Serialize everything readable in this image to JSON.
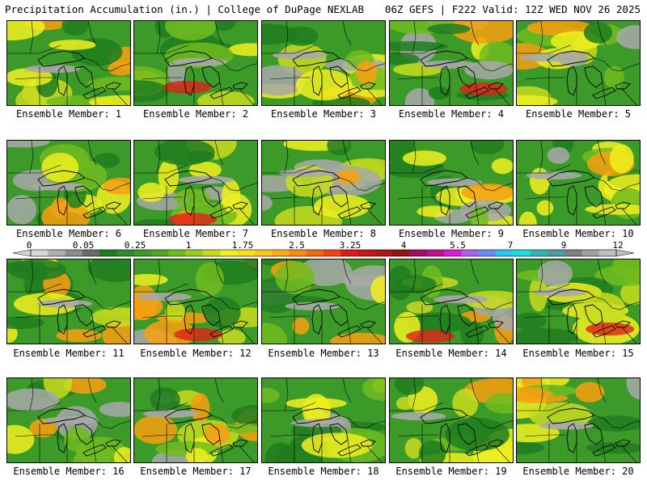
{
  "header": {
    "title": "Precipitation Accumulation (in.) | College of DuPage NEXLAB",
    "valid": "06Z GEFS | F222 Valid: 12Z WED NOV 26 2025"
  },
  "legend": {
    "ticks": [
      "0",
      "0.05",
      "0.25",
      "1",
      "1.75",
      "2.5",
      "3.25",
      "4",
      "5.5",
      "7",
      "9",
      "12"
    ],
    "colors": [
      "#d8d8d8",
      "#b0b0b0",
      "#8c8c8c",
      "#6a6a6a",
      "#1e7d1e",
      "#2e8b2e",
      "#3c9a28",
      "#4ea820",
      "#70bc1e",
      "#9ccc1e",
      "#c8dc1e",
      "#f0f01e",
      "#f8e018",
      "#fcc814",
      "#fcac10",
      "#f88c10",
      "#f46a10",
      "#f04414",
      "#e01818",
      "#c81818",
      "#b01418",
      "#981018",
      "#a01060",
      "#c0108c",
      "#e018d8",
      "#b060f0",
      "#6c8cf8",
      "#28c8f0",
      "#18e0e0",
      "#30b8b8",
      "#509c9c",
      "#808080",
      "#a0a0a0",
      "#c0c0c0"
    ]
  },
  "panels": [
    {
      "label": "Ensemble Member: 1"
    },
    {
      "label": "Ensemble Member: 2"
    },
    {
      "label": "Ensemble Member: 3"
    },
    {
      "label": "Ensemble Member: 4"
    },
    {
      "label": "Ensemble Member: 5"
    },
    {
      "label": "Ensemble Member: 6"
    },
    {
      "label": "Ensemble Member: 7"
    },
    {
      "label": "Ensemble Member: 8"
    },
    {
      "label": "Ensemble Member: 9"
    },
    {
      "label": "Ensemble Member: 10"
    },
    {
      "label": "Ensemble Member: 11"
    },
    {
      "label": "Ensemble Member: 12"
    },
    {
      "label": "Ensemble Member: 13"
    },
    {
      "label": "Ensemble Member: 14"
    },
    {
      "label": "Ensemble Member: 15"
    },
    {
      "label": "Ensemble Member: 16"
    },
    {
      "label": "Ensemble Member: 17"
    },
    {
      "label": "Ensemble Member: 18"
    },
    {
      "label": "Ensemble Member: 19"
    },
    {
      "label": "Ensemble Member: 20"
    }
  ],
  "palette": {
    "green_dark": "#1e7d1e",
    "green": "#3c9a28",
    "green_light": "#70bc1e",
    "yellow_green": "#c8dc1e",
    "yellow": "#f0f01e",
    "orange": "#f8a010",
    "red": "#e02018",
    "gray": "#a8a8a8",
    "gray_dark": "#6a6a6a"
  }
}
